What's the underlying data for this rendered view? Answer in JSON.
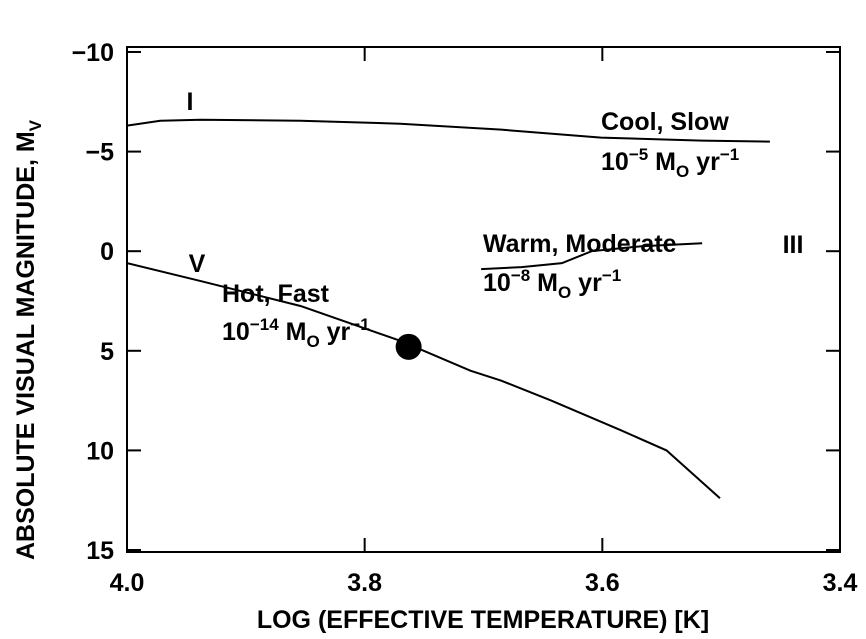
{
  "chart_data": {
    "type": "line",
    "xlabel": "LOG (EFFECTIVE TEMPERATURE) [K]",
    "ylabel": [
      {
        "text": "ABSOLUTE VISUAL MAGNITUDE, M"
      },
      {
        "text": "V",
        "shift": "sub"
      }
    ],
    "xlim": [
      4.0,
      3.4
    ],
    "xticks": [
      {
        "value": 4.0,
        "label": "4.0"
      },
      3.8,
      3.6,
      {
        "value": 3.4,
        "label": "3.4"
      }
    ],
    "ylim": [
      -10.25,
      15.1
    ],
    "yticks": [
      {
        "value": -10,
        "label": "−10"
      },
      {
        "value": -5,
        "label": "−5"
      },
      0,
      5,
      10,
      15
    ],
    "color": "#000000",
    "series": [
      {
        "name": "I",
        "x": [
          4.0,
          3.972,
          3.938,
          3.854,
          3.77,
          3.685,
          3.601,
          3.516,
          3.459
        ],
        "values": [
          -6.3,
          -6.55,
          -6.6,
          -6.55,
          -6.4,
          -6.1,
          -5.7,
          -5.55,
          -5.5
        ]
      },
      {
        "name": "V",
        "x": [
          4.0,
          3.938,
          3.854,
          3.77,
          3.711,
          3.685,
          3.643,
          3.584,
          3.546,
          3.501
        ],
        "values": [
          0.6,
          1.5,
          2.75,
          4.5,
          6.0,
          6.5,
          7.5,
          9.0,
          10.0,
          12.4
        ]
      },
      {
        "name": "III",
        "x": [
          3.702,
          3.668,
          3.634,
          3.609,
          3.567,
          3.516
        ],
        "values": [
          0.9,
          0.8,
          0.6,
          0.0,
          -0.25,
          -0.4
        ]
      }
    ],
    "points": {
      "x": [
        3.763
      ],
      "values": [
        4.8
      ]
    },
    "annotations": [
      {
        "parts": [
          {
            "text": "Cool, Slow"
          }
        ]
      },
      {
        "parts": [
          {
            "text": "10"
          },
          {
            "text": "−5",
            "shift": "sup"
          },
          {
            "text": " M"
          },
          {
            "text": "O",
            "shift": "sub"
          },
          {
            "text": " yr"
          },
          {
            "text": "−1",
            "shift": "sup"
          }
        ]
      },
      {
        "parts": [
          {
            "text": "Warm, Moderate"
          }
        ]
      },
      {
        "parts": [
          {
            "text": "10"
          },
          {
            "text": "−8",
            "shift": "sup"
          },
          {
            "text": " M"
          },
          {
            "text": "O",
            "shift": "sub"
          },
          {
            "text": " yr"
          },
          {
            "text": "−1",
            "shift": "sup"
          }
        ]
      },
      {
        "parts": [
          {
            "text": "Hot, Fast"
          }
        ]
      },
      {
        "parts": [
          {
            "text": "10"
          },
          {
            "text": "−14",
            "shift": "sup"
          },
          {
            "text": " M"
          },
          {
            "text": "O",
            "shift": "sub"
          },
          {
            "text": " yr"
          },
          {
            "text": "−1",
            "shift": "sup"
          }
        ]
      }
    ]
  }
}
